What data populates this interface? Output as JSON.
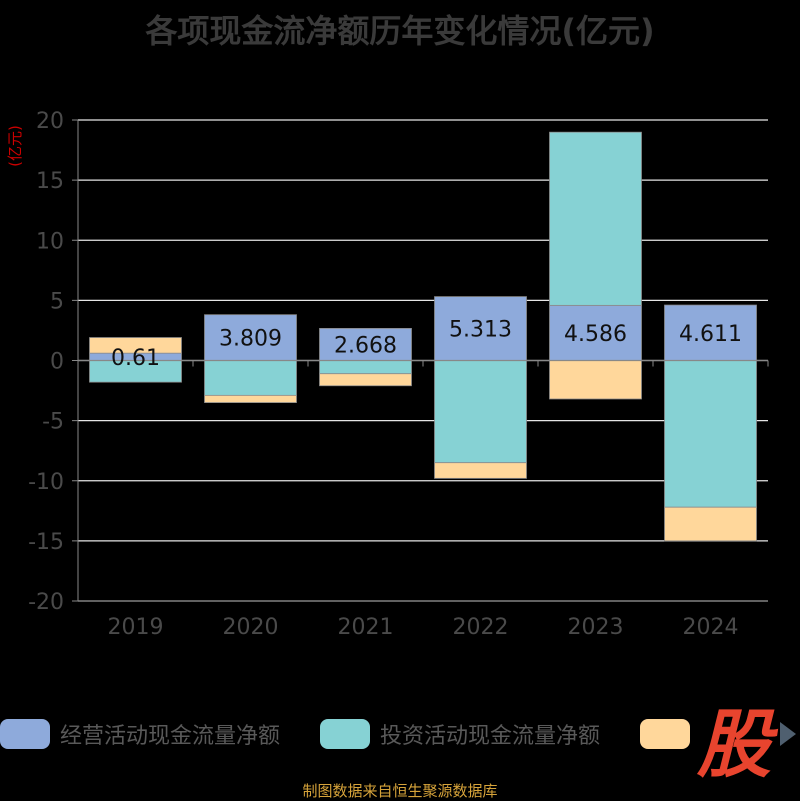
{
  "title": "各项现金流净额历年变化情况(亿元)",
  "source_note": "制图数据来自恒生聚源数据库",
  "brand_logo_text": "股",
  "chart_data": {
    "type": "bar",
    "stacked": true,
    "title": "各项现金流净额历年变化情况(亿元)",
    "ylabel": "(亿元)",
    "xlabel": "",
    "ylim": [
      -20,
      20
    ],
    "y_ticks": [
      20,
      15,
      10,
      5,
      0,
      -5,
      -10,
      -15,
      -20
    ],
    "grid": true,
    "legend_position": "bottom",
    "categories": [
      "2019",
      "2020",
      "2021",
      "2022",
      "2023",
      "2024"
    ],
    "series": [
      {
        "name": "经营活动现金流量净额",
        "color": "#8eaadb",
        "values": [
          0.61,
          3.809,
          2.668,
          5.313,
          4.586,
          4.611
        ],
        "labels": [
          "0.61",
          "3.809",
          "2.668",
          "5.313",
          "4.586",
          "4.611"
        ]
      },
      {
        "name": "投资活动现金流量净额",
        "color": "#86d2d4",
        "values": [
          -1.8,
          -2.9,
          -1.1,
          -8.5,
          14.4,
          -12.2
        ]
      },
      {
        "name": "",
        "color": "#ffd79b",
        "values": [
          1.3,
          -0.6,
          -1.0,
          -1.3,
          -3.2,
          -2.8
        ]
      }
    ]
  }
}
